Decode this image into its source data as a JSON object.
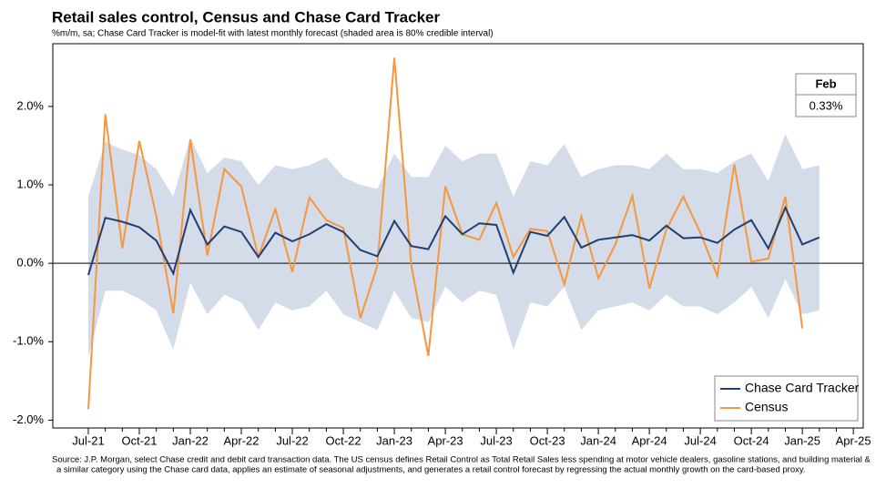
{
  "chart_data": {
    "type": "line",
    "title": "Retail sales control, Census and Chase Card Tracker",
    "subtitle": "%m/m, sa; Chase Card Tracker is model-fit with latest monthly forecast (shaded area is 80% credible interval)",
    "footnote": [
      "Source: J.P. Morgan, select Chase credit and debit card transaction data. The US census defines Retail Control as Total Retail Sales less spending at motor vehicle dealers, gasoline stations, and building material &",
      "a similar category using the Chase card data, applies an estimate of seasonal adjustments, and generates a retail control forecast by regressing the actual monthly growth on the card-based proxy."
    ],
    "categories": [
      "Jul-21",
      null,
      null,
      "Oct-21",
      null,
      null,
      "Jan-22",
      null,
      null,
      "Apr-22",
      null,
      null,
      "Jul-22",
      null,
      null,
      "Oct-22",
      null,
      null,
      "Jan-23",
      null,
      null,
      "Apr-23",
      null,
      null,
      "Jul-23",
      null,
      null,
      "Oct-23",
      null,
      null,
      "Jan-24",
      null,
      null,
      "Apr-24",
      null,
      null,
      "Jul-24",
      null,
      null,
      "Oct-24",
      null,
      null,
      "Jan-25",
      null,
      null,
      "Apr-25"
    ],
    "ylim": [
      -2.1,
      2.8
    ],
    "yticks": [
      {
        "value": -2,
        "label": "-2.0%"
      },
      {
        "value": -1,
        "label": "-1.0%"
      },
      {
        "value": 0,
        "label": "0.0%"
      },
      {
        "value": 1,
        "label": "1.0%"
      },
      {
        "value": 2,
        "label": "2.0%"
      }
    ],
    "legend": "lower right",
    "interval": {
      "color": "#d3dce8",
      "upper": [
        0.85,
        1.55,
        1.45,
        1.38,
        1.2,
        0.85,
        1.6,
        1.15,
        1.35,
        1.3,
        1.0,
        1.25,
        1.2,
        1.25,
        1.35,
        1.1,
        1.0,
        0.95,
        1.4,
        1.1,
        1.1,
        1.5,
        1.3,
        1.4,
        1.4,
        0.85,
        1.3,
        1.25,
        1.52,
        1.1,
        1.2,
        1.25,
        1.25,
        1.2,
        1.4,
        1.2,
        1.2,
        1.15,
        1.3,
        1.4,
        1.05,
        1.65,
        1.2,
        1.25,
        null,
        null
      ],
      "lower": [
        -1.2,
        -0.35,
        -0.35,
        -0.45,
        -0.6,
        -1.1,
        -0.25,
        -0.65,
        -0.4,
        -0.5,
        -0.85,
        -0.5,
        -0.6,
        -0.55,
        -0.35,
        -0.65,
        -0.75,
        -0.85,
        -0.35,
        -0.7,
        -0.75,
        -0.3,
        -0.5,
        -0.35,
        -0.4,
        -1.1,
        -0.5,
        -0.55,
        -0.3,
        -0.85,
        -0.6,
        -0.55,
        -0.5,
        -0.6,
        -0.4,
        -0.55,
        -0.55,
        -0.65,
        -0.5,
        -0.3,
        -0.7,
        -0.2,
        -0.65,
        -0.6,
        null,
        null
      ]
    },
    "series": [
      {
        "name": "Chase Card Tracker",
        "color": "#1f3f73",
        "values": [
          -0.15,
          0.58,
          0.53,
          0.46,
          0.29,
          -0.13,
          0.68,
          0.24,
          0.47,
          0.4,
          0.08,
          0.39,
          0.28,
          0.37,
          0.5,
          0.4,
          0.17,
          0.09,
          0.54,
          0.22,
          0.18,
          0.6,
          0.37,
          0.51,
          0.49,
          -0.12,
          0.4,
          0.35,
          0.59,
          0.2,
          0.3,
          0.33,
          0.36,
          0.29,
          0.48,
          0.32,
          0.33,
          0.26,
          0.43,
          0.55,
          0.19,
          0.71,
          0.24,
          0.33,
          null,
          null
        ]
      },
      {
        "name": "Census",
        "color": "#f7963d",
        "values": [
          -1.86,
          1.9,
          0.19,
          1.56,
          0.6,
          -0.64,
          1.58,
          0.1,
          1.2,
          0.98,
          0.08,
          0.69,
          -0.11,
          0.84,
          0.55,
          0.45,
          -0.7,
          -0.03,
          2.62,
          -0.03,
          -1.18,
          0.98,
          0.37,
          0.3,
          0.77,
          0.08,
          0.44,
          0.41,
          -0.27,
          0.6,
          -0.19,
          0.24,
          0.86,
          -0.32,
          0.43,
          0.85,
          0.39,
          -0.16,
          1.26,
          0.02,
          0.06,
          0.85,
          -0.83,
          null,
          null,
          null
        ]
      }
    ],
    "callout": {
      "label": "Feb",
      "value": 0.33,
      "value_label": "0.33%"
    }
  }
}
